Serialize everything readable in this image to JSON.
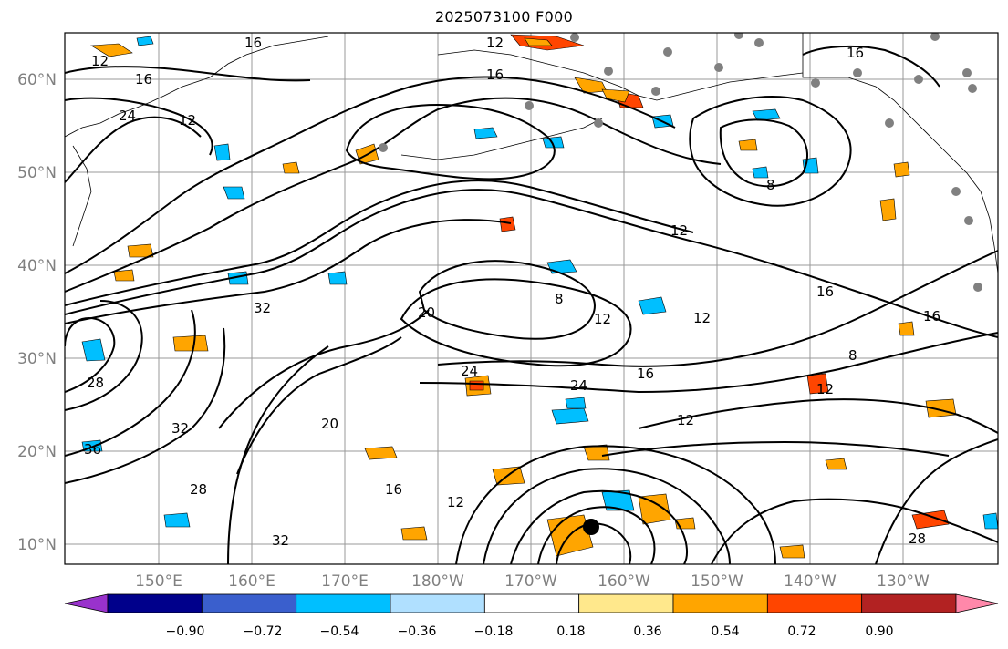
{
  "title": "2025073100 F000",
  "map": {
    "lon_labels": [
      "150°E",
      "160°E",
      "170°E",
      "180°W",
      "170°W",
      "160°W",
      "150°W",
      "140°W",
      "130°W"
    ],
    "lat_labels": [
      "60°N",
      "50°N",
      "40°N",
      "30°N",
      "20°N",
      "10°N"
    ],
    "contour_labels": [
      "16",
      "12",
      "16",
      "24",
      "12",
      "16",
      "12",
      "16",
      "8",
      "12",
      "16",
      "32",
      "20",
      "12",
      "16",
      "24",
      "12",
      "8",
      "28",
      "32",
      "36",
      "28",
      "32",
      "16",
      "12",
      "8",
      "16",
      "12",
      "20",
      "24",
      "28",
      "12"
    ],
    "station_markers": "gray circles along North American and Asian coasts",
    "storm_marker": "black circle near 12°N 163°W"
  },
  "colorbar": {
    "ticks": [
      "−0.90",
      "−0.72",
      "−0.54",
      "−0.36",
      "−0.18",
      "0.18",
      "0.36",
      "0.54",
      "0.72",
      "0.90"
    ],
    "colors": [
      "#9932cc",
      "#00008b",
      "#3a5fcd",
      "#00bfff",
      "#b0e0ff",
      "#ffffff",
      "#ffe88c",
      "#ffa500",
      "#ff4500",
      "#b22222",
      "#ff88aa"
    ]
  }
}
